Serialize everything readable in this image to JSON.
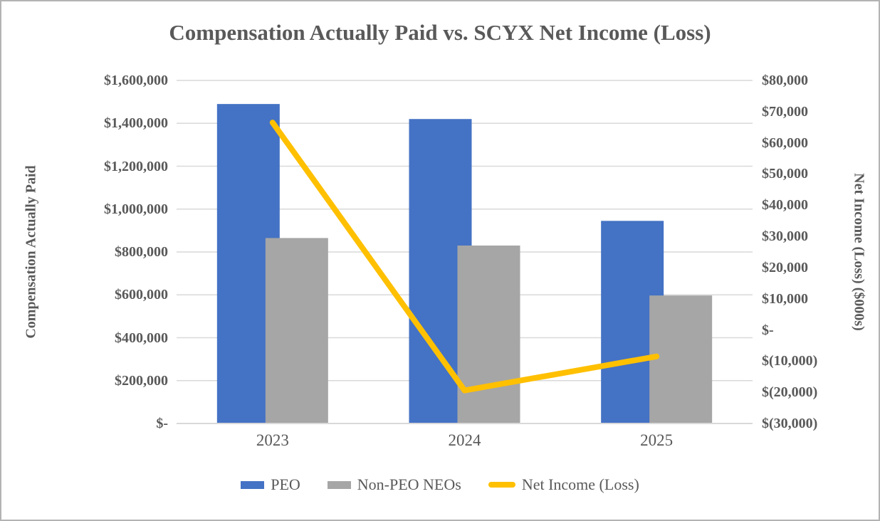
{
  "title": "Compensation Actually Paid vs. SCYX Net Income (Loss)",
  "colors": {
    "peo_bar": "#4472C4",
    "non_peo_bar": "#A6A6A6",
    "net_income_line": "#FFC000",
    "text": "#595959",
    "gridline": "#D9D9D9",
    "axis_line": "#D9D9D9",
    "border": "#B3B3B3",
    "background": "#FFFFFF"
  },
  "left_axis": {
    "title": "Compensation Actually Paid",
    "tick_labels": [
      "$1,600,000",
      "$1,400,000",
      "$1,200,000",
      "$1,000,000",
      "$800,000",
      "$600,000",
      "$400,000",
      "$200,000",
      "$-"
    ]
  },
  "right_axis": {
    "title": "Net Income (Loss) ($000s)",
    "tick_labels": [
      "$80,000",
      "$70,000",
      "$60,000",
      "$50,000",
      "$40,000",
      "$30,000",
      "$20,000",
      "$10,000",
      "$-",
      "$(10,000)",
      "$(20,000)",
      "$(30,000)"
    ]
  },
  "legend": {
    "peo": "PEO",
    "non_peo": "Non-PEO NEOs",
    "net_income": "Net Income (Loss)"
  },
  "chart_data": {
    "type": "combo",
    "categories": [
      "2023",
      "2024",
      "2025"
    ],
    "series": [
      {
        "name": "PEO",
        "type": "bar",
        "axis": "left",
        "values": [
          1490000,
          1420000,
          945000
        ]
      },
      {
        "name": "Non-PEO NEOs",
        "type": "bar",
        "axis": "left",
        "values": [
          865000,
          830000,
          597000
        ]
      },
      {
        "name": "Net Income (Loss)",
        "type": "line",
        "axis": "right",
        "values": [
          66500,
          -19400,
          -8500
        ]
      }
    ],
    "title": "Compensation Actually Paid vs. SCYX Net Income (Loss)",
    "left_ylabel": "Compensation Actually Paid",
    "right_ylabel": "Net Income (Loss) ($000s)",
    "left_ylim": [
      0,
      1600000
    ],
    "left_tick_step": 200000,
    "right_ylim": [
      -30000,
      80000
    ],
    "right_tick_step": 10000,
    "grid": true,
    "legend_position": "bottom"
  }
}
